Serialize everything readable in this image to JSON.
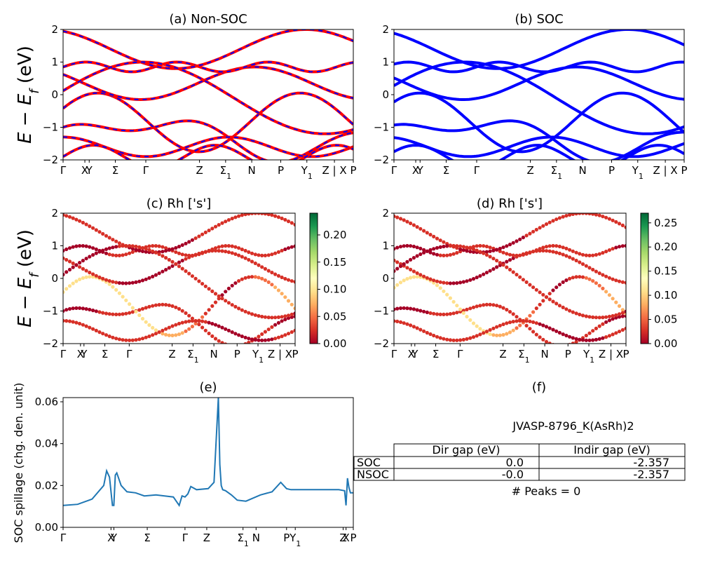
{
  "chart_data": [
    {
      "type": "line",
      "panel": "a",
      "title": "(a) Non-SOC",
      "ylabel": "E − E_f (eV)",
      "ylim": [
        -2,
        2
      ],
      "yticks": [
        "2",
        "1",
        "0",
        "−1",
        "−2"
      ],
      "kpath_labels": [
        "Γ",
        "X",
        "Y",
        "Σ",
        "Γ",
        "Z",
        "Σ₁",
        "N",
        "P",
        "Y₁",
        "Z | X",
        "P"
      ],
      "colors": [
        "#ff0000",
        "#0000ff"
      ]
    },
    {
      "type": "line",
      "panel": "b",
      "title": "(b) SOC",
      "ylim": [
        -2,
        2
      ],
      "yticks": [
        "2",
        "1",
        "0",
        "−1",
        "−2"
      ],
      "kpath_labels": [
        "Γ",
        "X",
        "Y",
        "Σ",
        "Γ",
        "Z",
        "Σ₁",
        "N",
        "P",
        "Y₁",
        "Z | X",
        "P"
      ],
      "colors": [
        "#0000ff"
      ]
    },
    {
      "type": "scatter",
      "panel": "c",
      "title": "(c)  Rh ['s']",
      "ylabel": "E − E_f (eV)",
      "ylim": [
        -2,
        2
      ],
      "yticks": [
        "2",
        "1",
        "0",
        "−1",
        "−2"
      ],
      "kpath_labels": [
        "Γ",
        "X",
        "Y",
        "Σ",
        "Γ",
        "Z",
        "Σ₁",
        "N",
        "P",
        "Y₁",
        "Z | X",
        "P"
      ],
      "colorbar_range": [
        0,
        0.24
      ],
      "colorbar_ticks": [
        "0.20",
        "0.15",
        "0.10",
        "0.05",
        "0.00"
      ]
    },
    {
      "type": "scatter",
      "panel": "d",
      "title": "(d) Rh ['s']",
      "ylim": [
        -2,
        2
      ],
      "yticks": [
        "2",
        "1",
        "0",
        "−1",
        "−2"
      ],
      "kpath_labels": [
        "Γ",
        "X",
        "Y",
        "Σ",
        "Γ",
        "Z",
        "Σ₁",
        "N",
        "P",
        "Y₁",
        "Z | X",
        "P"
      ],
      "colorbar_range": [
        0,
        0.27
      ],
      "colorbar_ticks": [
        "0.25",
        "0.20",
        "0.15",
        "0.10",
        "0.05",
        "0.00"
      ]
    },
    {
      "type": "line",
      "panel": "e",
      "title": "(e)",
      "ylabel": "SOC spillage (chg. den. unit)",
      "ylim": [
        0,
        0.062
      ],
      "yticks": [
        "0.06",
        "0.04",
        "0.02",
        "0.00"
      ],
      "ytick_values": [
        0.06,
        0.04,
        0.02,
        0
      ],
      "kpath_labels": [
        "Γ",
        "X",
        "Y",
        "Σ",
        "Γ",
        "Z",
        "Σ₁",
        "N",
        "P",
        "Y₁",
        "Z",
        "X",
        "P"
      ],
      "color": "#1f77b4",
      "x": [
        0,
        0.05,
        0.1,
        0.14,
        0.15,
        0.16,
        0.17,
        0.175,
        0.18,
        0.185,
        0.19,
        0.2,
        0.22,
        0.25,
        0.28,
        0.32,
        0.35,
        0.38,
        0.4,
        0.41,
        0.42,
        0.43,
        0.44,
        0.46,
        0.5,
        0.52,
        0.535,
        0.54,
        0.545,
        0.55,
        0.56,
        0.58,
        0.6,
        0.63,
        0.68,
        0.72,
        0.75,
        0.77,
        0.785,
        0.8,
        0.85,
        0.9,
        0.95,
        0.97,
        0.975,
        0.98,
        0.985,
        0.99,
        1.0
      ],
      "y": [
        0.0105,
        0.011,
        0.0135,
        0.02,
        0.027,
        0.024,
        0.0105,
        0.0105,
        0.025,
        0.026,
        0.024,
        0.02,
        0.017,
        0.0165,
        0.015,
        0.0155,
        0.015,
        0.0145,
        0.0105,
        0.015,
        0.0145,
        0.016,
        0.0195,
        0.018,
        0.0185,
        0.0215,
        0.062,
        0.03,
        0.02,
        0.018,
        0.0175,
        0.0155,
        0.013,
        0.0125,
        0.0155,
        0.017,
        0.0215,
        0.0185,
        0.018,
        0.018,
        0.018,
        0.018,
        0.018,
        0.0175,
        0.0105,
        0.0235,
        0.019,
        0.0165,
        0.0165
      ]
    }
  ],
  "panel_f": {
    "title": "(f)",
    "material": "JVASP-8796_K(AsRh)2",
    "header": [
      "Dir gap (eV)",
      "Indir gap (eV)"
    ],
    "rows": [
      {
        "label": "SOC",
        "dir": "0.0",
        "indir": "-2.357"
      },
      {
        "label": "NSOC",
        "dir": "-0.0",
        "indir": "-2.357"
      }
    ],
    "peaks": "# Peaks = 0"
  }
}
